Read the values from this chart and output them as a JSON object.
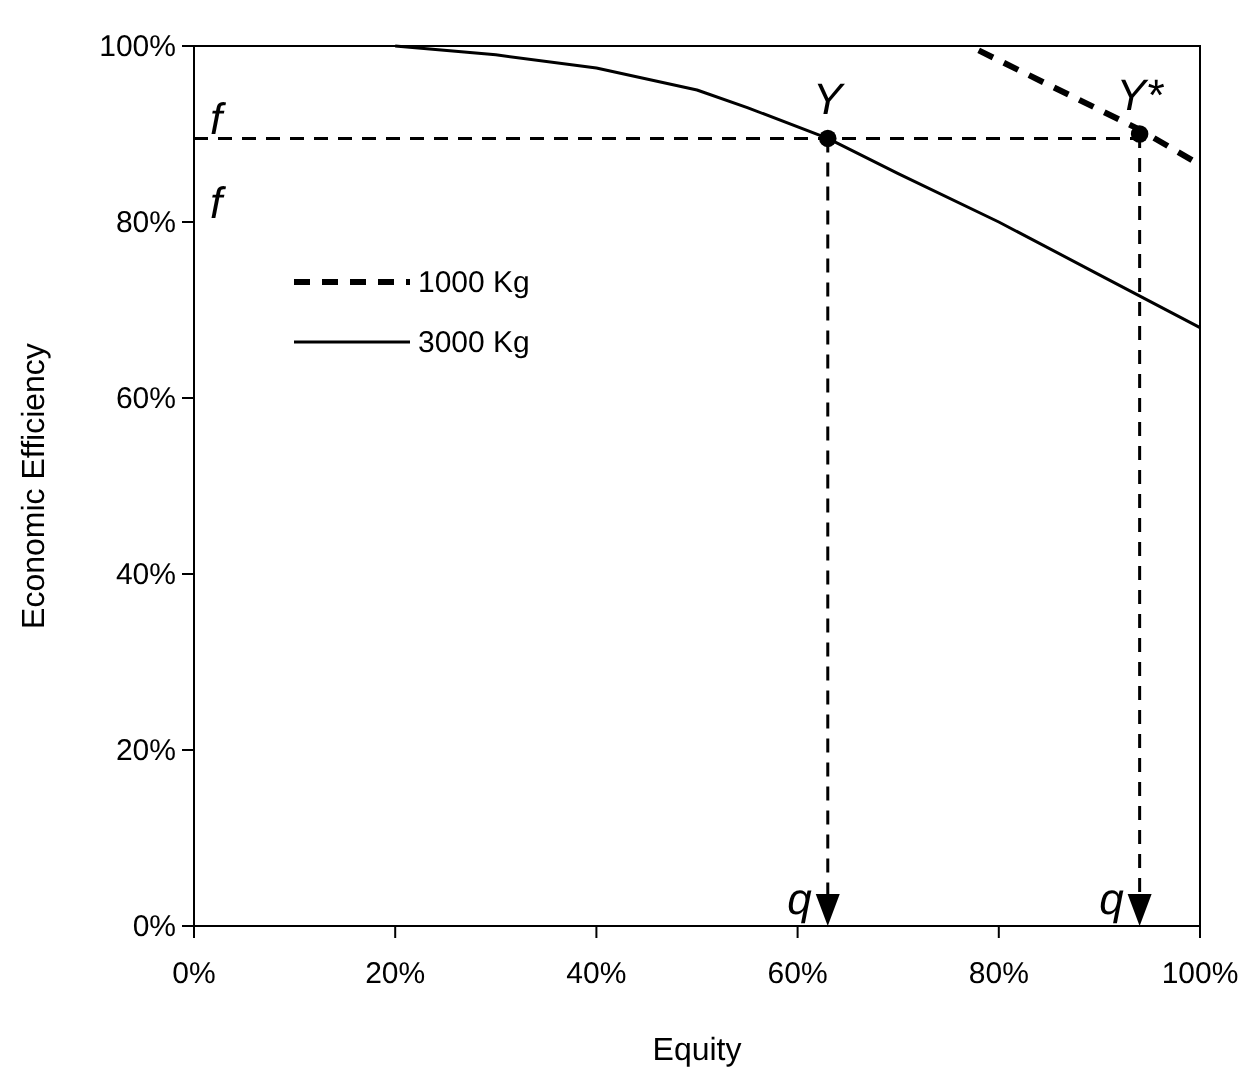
{
  "chart_data": {
    "type": "line",
    "xlabel": "Equity",
    "ylabel": "Economic Efficiency",
    "xlim": [
      0,
      100
    ],
    "ylim": [
      0,
      100
    ],
    "xticks": [
      {
        "value": 0,
        "label": "0%"
      },
      {
        "value": 20,
        "label": "20%"
      },
      {
        "value": 40,
        "label": "40%"
      },
      {
        "value": 60,
        "label": "60%"
      },
      {
        "value": 80,
        "label": "80%"
      },
      {
        "value": 100,
        "label": "100%"
      }
    ],
    "yticks": [
      {
        "value": 0,
        "label": "0%"
      },
      {
        "value": 20,
        "label": "20%"
      },
      {
        "value": 40,
        "label": "40%"
      },
      {
        "value": 60,
        "label": "60%"
      },
      {
        "value": 80,
        "label": "80%"
      },
      {
        "value": 100,
        "label": "100%"
      }
    ],
    "grid": false,
    "legend": "top left",
    "marker": "none",
    "series": [
      {
        "name": "1000 Kg",
        "color": "#000000",
        "line_style": "dashed",
        "x": [
          78,
          94,
          100
        ],
        "values": [
          99.5,
          90.5,
          86.5
        ]
      },
      {
        "name": "3000 Kg",
        "color": "#000000",
        "line_style": "solid",
        "x": [
          20,
          30,
          40,
          50,
          55,
          63,
          70,
          80,
          90,
          100
        ],
        "values": [
          100,
          99,
          97.5,
          95,
          93,
          89.5,
          85.5,
          80,
          74,
          68
        ]
      },
      {
        "type": "scatter",
        "color": "#000000",
        "marker": "circle",
        "x": [
          63,
          94
        ],
        "values": [
          89.5,
          90
        ]
      }
    ],
    "annotations": [
      {
        "text": "Y",
        "x": 63,
        "y": 89.5
      },
      {
        "text": "Y*",
        "x": 94,
        "y": 90
      },
      "f",
      "f",
      "q",
      "q"
    ]
  }
}
